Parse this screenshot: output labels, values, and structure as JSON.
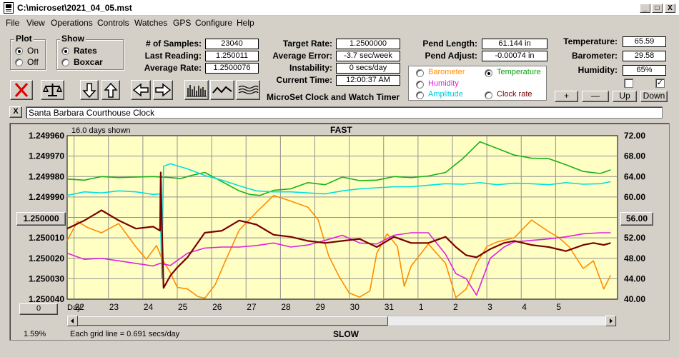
{
  "window": {
    "title": "C:\\microset\\2021_04_05.mst"
  },
  "caption_buttons": [
    "_",
    "□",
    "X"
  ],
  "menu": [
    {
      "label": "File"
    },
    {
      "label": "View"
    },
    {
      "label": "Operations"
    },
    {
      "label": "Controls"
    },
    {
      "label": "Watches"
    },
    {
      "label": "GPS"
    },
    {
      "label": "Configure"
    },
    {
      "label": "Help"
    }
  ],
  "plot_group": {
    "title": "Plot",
    "options": [
      "On",
      "Off"
    ],
    "selected": "On"
  },
  "show_group": {
    "title": "Show",
    "options": [
      "Rates",
      "Boxcar"
    ],
    "selected": "Rates"
  },
  "stats": {
    "samples_label": "# of Samples:",
    "samples": "23040",
    "last_reading_label": "Last Reading:",
    "last_reading": "1.250011",
    "average_rate_label": "Average Rate:",
    "average_rate": "1.2500076",
    "target_rate_label": "Target Rate:",
    "target_rate": "1.2500000",
    "average_error_label": "Average Error:",
    "average_error": "-3.7 sec/week",
    "instability_label": "Instability:",
    "instability": "0 secs/day",
    "current_time_label": "Current Time:",
    "current_time": "12:00:37 AM",
    "pend_length_label": "Pend Length:",
    "pend_length": "61.144 in",
    "pend_adjust_label": "Pend Adjust:",
    "pend_adjust": "-0.00074 in",
    "temperature_label": "Temperature:",
    "temperature": "65.59",
    "barometer_label": "Barometer:",
    "barometer": "29.58",
    "humidity_label": "Humidity:",
    "humidity": "65%"
  },
  "app_label": "MicroSet Clock and Watch Timer",
  "selector": {
    "barometer": "Barometer",
    "temperature": "Temperature",
    "humidity": "Humidity",
    "amplitude": "Amplitude",
    "clock_rate": "Clock rate",
    "selected": "Temperature"
  },
  "adjust_buttons": {
    "plus": "+",
    "minus": "—",
    "up": "Up",
    "down": "Down"
  },
  "clock_name": "Santa Barbara Courthouse Clock",
  "clear_label": "X",
  "chart": {
    "days_shown": "16.0 days shown",
    "fast": "FAST",
    "slow": "SLOW",
    "grid_note": "Each grid line = 0.691 secs/day",
    "zoom_percent": "1.59%",
    "day_label": "Day:",
    "left_mid_button": "1.250000",
    "right_mid_button": "56.00",
    "bottom_left_button": "0"
  },
  "colors": {
    "plot_bg": "#ffffc4",
    "rate": "#7a0000",
    "barometer": "#ff8c00",
    "temperature": "#18b018",
    "humidity": "#e020e0",
    "amplitude": "#00e0e0",
    "grid": "#909090"
  },
  "chart_data": {
    "type": "line",
    "left_axis": {
      "ticks": [
        "1.249960",
        "1.249970",
        "1.249980",
        "1.249990",
        "1.250000",
        "1.250010",
        "1.250020",
        "1.250030",
        "1.250040"
      ],
      "ylim": [
        1.24996,
        1.25004
      ],
      "inverted": true
    },
    "right_axis": {
      "ticks": [
        "72.00",
        "68.00",
        "64.00",
        "60.00",
        "56.00",
        "52.00",
        "48.00",
        "44.00",
        "40.00"
      ],
      "ylim": [
        40,
        72
      ]
    },
    "x_ticks": [
      "22",
      "23",
      "24",
      "25",
      "26",
      "27",
      "28",
      "29",
      "30",
      "31",
      "1",
      "2",
      "3",
      "4",
      "5"
    ],
    "xlim": [
      0,
      16
    ],
    "series": [
      {
        "key": "temperature",
        "axis": "right",
        "x": [
          0,
          0.5,
          1,
          1.5,
          2,
          2.5,
          3,
          3.3,
          3.6,
          4,
          4.5,
          5,
          5.3,
          5.6,
          6,
          6.5,
          7,
          7.5,
          8,
          8.5,
          9,
          9.5,
          10,
          10.5,
          11,
          11.5,
          11.8,
          12,
          12.5,
          13,
          13.5,
          14,
          14.5,
          15,
          15.5,
          15.8
        ],
        "y": [
          63.5,
          63.3,
          64.0,
          63.8,
          63.9,
          64.0,
          63.8,
          63.6,
          64.2,
          64.8,
          63.0,
          61.2,
          60.5,
          60.3,
          61.3,
          61.6,
          62.8,
          62.4,
          63.9,
          63.2,
          63.3,
          64.0,
          63.8,
          64.1,
          64.8,
          67.5,
          69.5,
          70.8,
          69.5,
          68.2,
          67.6,
          67.5,
          66.3,
          65.0,
          64.6,
          65.3
        ]
      },
      {
        "key": "amplitude",
        "axis": "right",
        "x": [
          0,
          0.5,
          1,
          1.5,
          2,
          2.5,
          2.7,
          2.75,
          2.8,
          3,
          3.5,
          4,
          4.5,
          5,
          5.5,
          6,
          6.5,
          7,
          7.5,
          8,
          8.5,
          9,
          9.5,
          10,
          10.5,
          11,
          11.5,
          12,
          12.5,
          13,
          13.5,
          14,
          14.5,
          15,
          15.5,
          15.8
        ],
        "y": [
          60.3,
          61.0,
          60.8,
          61.2,
          61.0,
          60.5,
          60.6,
          44,
          66,
          66.5,
          65.5,
          64.2,
          63.3,
          62.2,
          61.2,
          61.0,
          61.0,
          60.8,
          60.6,
          61.2,
          61.6,
          61.8,
          62.0,
          62.0,
          62.3,
          62.6,
          62.5,
          62.8,
          62.4,
          62.7,
          62.6,
          62.4,
          62.8,
          62.5,
          62.6,
          63.0
        ]
      },
      {
        "key": "barometer",
        "axis": "right",
        "x": [
          0,
          0.3,
          0.6,
          1,
          1.5,
          2,
          2.3,
          2.6,
          2.75,
          3,
          3.2,
          3.5,
          3.8,
          4,
          4.3,
          4.6,
          5,
          5.5,
          6,
          6.5,
          7,
          7.3,
          7.6,
          7.9,
          8.2,
          8.5,
          8.8,
          9,
          9.3,
          9.6,
          9.8,
          10,
          10.5,
          11,
          11.3,
          11.6,
          11.9,
          12.2,
          12.5,
          13,
          13.5,
          14,
          14.3,
          14.6,
          15,
          15.3,
          15.6,
          15.8
        ],
        "y": [
          51.5,
          55.2,
          54.0,
          53.0,
          54.8,
          50.2,
          47.8,
          50.5,
          48.0,
          45.2,
          42.3,
          42.0,
          40.5,
          40.2,
          42.8,
          47.5,
          53.5,
          57.0,
          60.3,
          59.2,
          58.0,
          55.5,
          48.5,
          44.5,
          41.2,
          40.4,
          41.6,
          49.0,
          52.8,
          50.3,
          42.5,
          46.5,
          50.8,
          47.0,
          40.3,
          42.0,
          47.0,
          50.3,
          51.2,
          52.0,
          55.5,
          53.2,
          52.0,
          50.2,
          46.0,
          47.5,
          42.0,
          44.7
        ]
      },
      {
        "key": "humidity",
        "axis": "right",
        "x": [
          0,
          0.5,
          1,
          1.5,
          2,
          2.5,
          2.7,
          3,
          3.5,
          4,
          4.5,
          5,
          5.5,
          6,
          6.5,
          7,
          7.5,
          8,
          8.5,
          9,
          9.5,
          10,
          10.5,
          11,
          11.3,
          11.6,
          11.9,
          12.3,
          12.7,
          13,
          13.5,
          14,
          14.5,
          15,
          15.5,
          15.8
        ],
        "y": [
          49.0,
          47.8,
          48.0,
          47.5,
          47.0,
          46.5,
          47.0,
          46.6,
          49.0,
          50.0,
          50.2,
          50.2,
          50.5,
          51.0,
          50.2,
          50.6,
          51.5,
          52.5,
          51.0,
          50.8,
          52.5,
          53.0,
          53.0,
          48.8,
          45.0,
          44.0,
          40.8,
          48.0,
          50.2,
          51.2,
          51.5,
          51.8,
          52.2,
          52.8,
          53.0,
          53.0
        ]
      },
      {
        "key": "rate",
        "axis": "left",
        "x": [
          0,
          0.5,
          1,
          1.5,
          2,
          2.5,
          2.7,
          2.72,
          2.75,
          2.8,
          3,
          3.2,
          3.5,
          4,
          4.5,
          5,
          5.5,
          6,
          6.5,
          7,
          7.5,
          8,
          8.5,
          9,
          9.5,
          10,
          10.5,
          11,
          11.3,
          11.6,
          11.9,
          12.3,
          12.7,
          13,
          13.5,
          14,
          14.5,
          15,
          15.3,
          15.6,
          15.8
        ],
        "y": [
          1.2500055,
          1.2500015,
          1.2499965,
          1.2500015,
          1.2500055,
          1.2500045,
          1.2500065,
          1.249978,
          1.2500005,
          1.2500345,
          1.2500285,
          1.2500245,
          1.2500195,
          1.2500075,
          1.2500065,
          1.2500015,
          1.2500035,
          1.2500085,
          1.2500095,
          1.2500115,
          1.2500125,
          1.2500115,
          1.2500105,
          1.2500145,
          1.2500095,
          1.2500125,
          1.2500125,
          1.2500095,
          1.2500145,
          1.2500185,
          1.2500195,
          1.2500155,
          1.2500125,
          1.2500115,
          1.2500135,
          1.2500145,
          1.2500165,
          1.2500135,
          1.2500125,
          1.2500135,
          1.2500125
        ]
      }
    ]
  }
}
